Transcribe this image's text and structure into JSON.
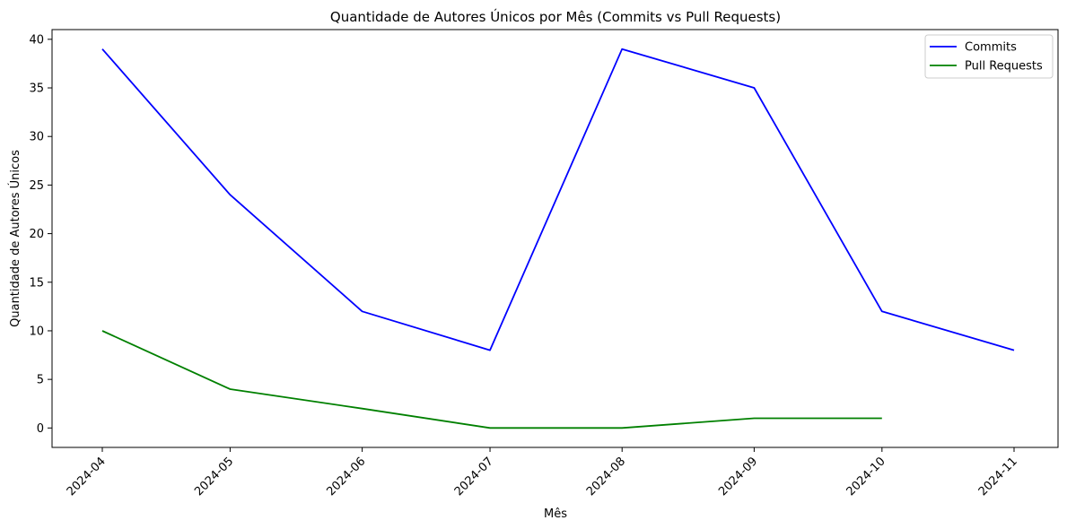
{
  "chart_data": {
    "type": "line",
    "title": "Quantidade de Autores Únicos por Mês (Commits vs Pull Requests)",
    "xlabel": "Mês",
    "ylabel": "Quantidade de Autores Únicos",
    "x_ticks": [
      "2024-04",
      "2024-05",
      "2024-06",
      "2024-07",
      "2024-08",
      "2024-09",
      "2024-10",
      "2024-11"
    ],
    "y_ticks": [
      0,
      5,
      10,
      15,
      20,
      25,
      30,
      35,
      40
    ],
    "ylim": [
      -2,
      41
    ],
    "grid": false,
    "legend_position": "top-right",
    "series": [
      {
        "name": "Commits",
        "color": "#0000ff",
        "x": [
          "2024-03-31",
          "2024-04-30",
          "2024-05-31",
          "2024-06-30",
          "2024-07-31",
          "2024-08-31",
          "2024-09-30",
          "2024-10-31"
        ],
        "values": [
          39,
          24,
          12,
          8,
          39,
          35,
          12,
          8
        ]
      },
      {
        "name": "Pull Requests",
        "color": "#008000",
        "x": [
          "2024-03-31",
          "2024-04-30",
          "2024-05-31",
          "2024-06-30",
          "2024-07-31",
          "2024-08-31",
          "2024-09-30"
        ],
        "values": [
          10,
          4,
          2,
          0,
          0,
          1,
          1
        ]
      }
    ]
  }
}
